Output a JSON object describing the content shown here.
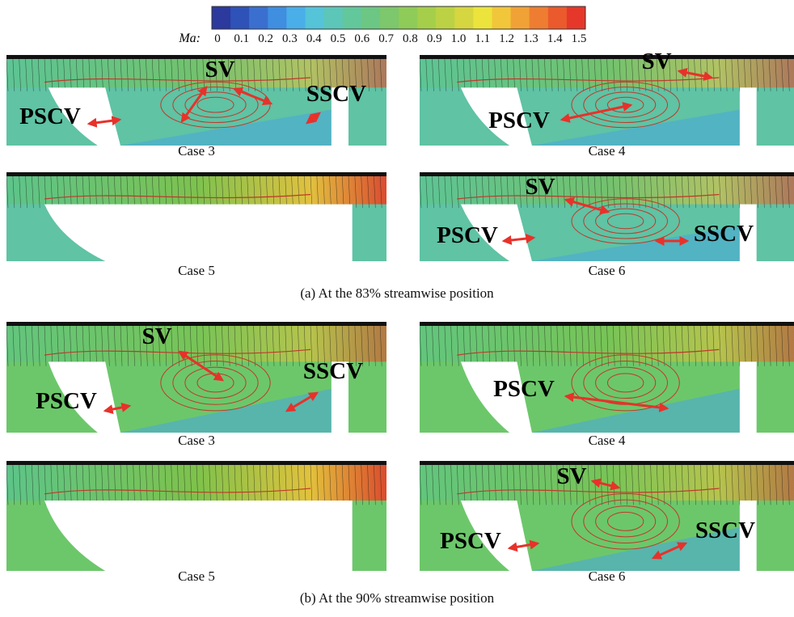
{
  "colorbar": {
    "label": "Ma:",
    "ticks": [
      "0",
      "0.1",
      "0.2",
      "0.3",
      "0.4",
      "0.5",
      "0.6",
      "0.7",
      "0.8",
      "0.9",
      "1.0",
      "1.1",
      "1.2",
      "1.3",
      "1.4",
      "1.5"
    ]
  },
  "groups": [
    {
      "caption": "(a) At the 83% streamwise position",
      "panels": [
        {
          "caption": "Case 3",
          "labels": [
            "SV",
            "PSCV",
            "SSCV"
          ]
        },
        {
          "caption": "Case 4",
          "labels": [
            "SV",
            "PSCV"
          ]
        },
        {
          "caption": "Case 5",
          "labels": []
        },
        {
          "caption": "Case 6",
          "labels": [
            "SV",
            "PSCV",
            "SSCV"
          ]
        }
      ]
    },
    {
      "caption": "(b) At the 90% streamwise position",
      "panels": [
        {
          "caption": "Case 3",
          "labels": [
            "SV",
            "PSCV",
            "SSCV"
          ]
        },
        {
          "caption": "Case 4",
          "labels": [
            "PSCV"
          ]
        },
        {
          "caption": "Case 5",
          "labels": []
        },
        {
          "caption": "Case 6",
          "labels": [
            "SV",
            "PSCV",
            "SSCV"
          ]
        }
      ]
    }
  ]
}
